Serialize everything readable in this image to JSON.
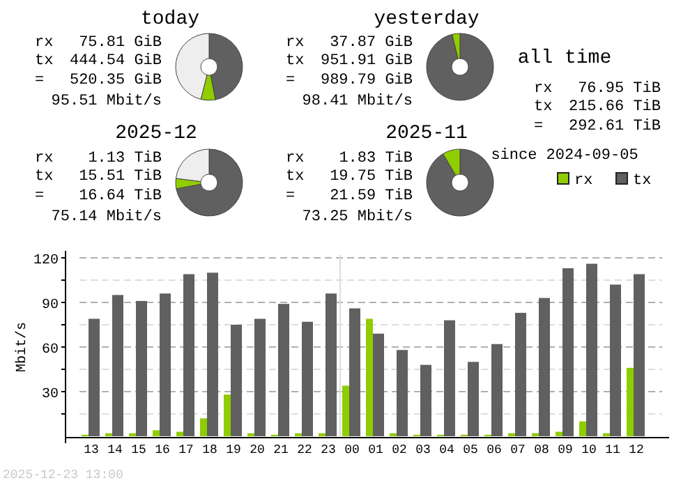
{
  "chart_data": [
    {
      "type": "donut",
      "title": "today",
      "categories": [
        null,
        null,
        null
      ],
      "values": [
        47,
        7,
        46
      ],
      "colors": [
        "#606060",
        "#8fcc00",
        "#eeeeee"
      ],
      "annotations": [
        "rx",
        "75.81 GiB",
        "tx",
        "444.54 GiB",
        "=",
        "520.35 GiB",
        "95.51 Mbit/s"
      ]
    },
    {
      "type": "donut",
      "title": "yesterday",
      "categories": [
        null,
        null
      ],
      "values": [
        96.2,
        3.8
      ],
      "colors": [
        "#606060",
        "#8fcc00"
      ],
      "annotations": [
        "rx",
        "37.87 GiB",
        "tx",
        "951.91 GiB",
        "=",
        "989.79 GiB",
        "98.41 Mbit/s"
      ]
    },
    {
      "type": "other",
      "title": "all time",
      "annotations": [
        "rx",
        "76.95 TiB",
        "tx",
        "215.66 TiB",
        "=",
        "292.61 TiB",
        "since 2024-09-05"
      ]
    },
    {
      "type": "donut",
      "title": "2025-12",
      "categories": [
        null,
        null,
        null
      ],
      "values": [
        72,
        5,
        23
      ],
      "colors": [
        "#606060",
        "#8fcc00",
        "#eeeeee"
      ],
      "annotations": [
        "rx",
        "1.13 TiB",
        "tx",
        "15.51 TiB",
        "=",
        "16.64 TiB",
        "75.14 Mbit/s"
      ]
    },
    {
      "type": "donut",
      "title": "2025-11",
      "categories": [
        null,
        null
      ],
      "values": [
        91.5,
        8.5
      ],
      "colors": [
        "#606060",
        "#8fcc00"
      ],
      "annotations": [
        "rx",
        "1.83 TiB",
        "tx",
        "19.75 TiB",
        "=",
        "21.59 TiB",
        "73.25 Mbit/s"
      ]
    },
    {
      "type": "bar",
      "ylabel": "Mbit/s",
      "categories": [
        "13",
        "14",
        "15",
        "16",
        "17",
        "18",
        "19",
        "20",
        "21",
        "22",
        "23",
        "00",
        "01",
        "02",
        "03",
        "04",
        "05",
        "06",
        "07",
        "08",
        "09",
        "10",
        "11",
        "12"
      ],
      "series": [
        {
          "name": "rx",
          "color": "#8fcc00",
          "values": [
            1,
            2,
            2,
            4,
            3,
            12,
            28,
            2,
            1,
            2,
            2,
            34,
            79,
            2,
            1,
            1,
            1,
            1,
            2,
            2,
            3,
            10,
            2,
            46
          ]
        },
        {
          "name": "tx",
          "color": "#606060",
          "values": [
            79,
            95,
            91,
            96,
            109,
            110,
            75,
            79,
            89,
            77,
            96,
            86,
            69,
            58,
            48,
            78,
            50,
            62,
            83,
            93,
            113,
            116,
            102,
            109
          ]
        }
      ],
      "ylim": [
        0,
        120
      ],
      "yticks": [
        {
          "value": 15,
          "label": null
        },
        30,
        {
          "value": 45,
          "label": null
        },
        60,
        {
          "value": 75,
          "label": null
        },
        90,
        {
          "value": 105,
          "label": null
        },
        120
      ],
      "grid": "y",
      "legend": "top right",
      "ref_lines": [
        {
          "axis": "x",
          "value": "00",
          "color": "#dddddd"
        }
      ],
      "annotations": [
        "2025-12-23 13:00"
      ]
    }
  ]
}
